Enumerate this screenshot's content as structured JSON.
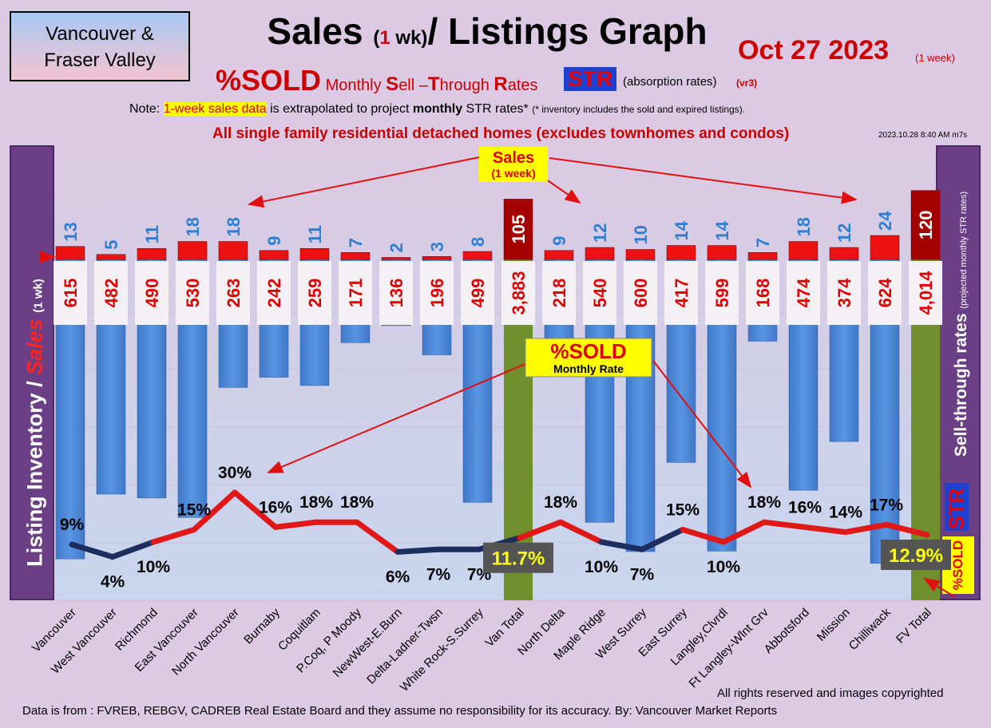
{
  "header": {
    "region_line1": "Vancouver &",
    "region_line2": "Fraser Valley",
    "title_a": "Sales ",
    "title_b": "(",
    "title_c": "1",
    "title_d": " wk)",
    "title_e": "/ Listings Graph",
    "date": "Oct 27  2023",
    "date_sub": "(1 week)",
    "sub_sold": "%SOLD",
    "sub_m1": " Monthly ",
    "sub_s": "S",
    "sub_m2": "ell –",
    "sub_t": "T",
    "sub_m3": "hrough ",
    "sub_r": "R",
    "sub_m4": "ates",
    "str_badge": "STR",
    "absorption": "(absorption rates)",
    "vr3": "(vr3)",
    "note_a": "Note: ",
    "note_hl": "1-week sales data",
    "note_b": " is extrapolated to project ",
    "note_bold": "monthly",
    "note_c": " STR rates* ",
    "note_small": "(* inventory includes the sold and expired listings).",
    "all_single": "All single family residential detached homes (excludes townhomes and condos)",
    "stamp": "2023.10.28 8:40 AM m7s"
  },
  "side": {
    "left_a": "Listing Inventory ",
    "left_slash": "/",
    "left_sales": " Sales ",
    "left_wk": "(1 wk)",
    "right_a": "Sell-through rates ",
    "right_sm": "(projected monthly STR rates)",
    "str": "STR",
    "sold": "%SOLD"
  },
  "callouts": {
    "sales_title": "Sales",
    "sales_sub": "(1 week)",
    "sold_title": "%SOLD",
    "sold_sub": "Monthly Rate"
  },
  "footer": {
    "rights": "All rights reserved and  images copyrighted",
    "source": "Data is from : FVREB, REBGV, CADREB Real Estate Board and they assume no responsibility for its accuracy. By: Vancouver Market Reports"
  },
  "colors": {
    "inventory_bar": "#4a86d6",
    "total_bar": "#6f8f2d",
    "sales_bar": "#ee1111",
    "sales_total_bar": "#a50000",
    "sales_label": "#2f7fd0",
    "inventory_label": "#e00000",
    "line_high": "#e01818",
    "line_low": "#1c2d5e"
  },
  "chart_data": {
    "type": "bar",
    "categories": [
      "Vancouver",
      "West Vancouver",
      "Richmond",
      "East Vancouver",
      "North Vancouver",
      "Burnaby",
      "Coquitlam",
      "P.Coq, P Moody",
      "NewWest-E.Burn",
      "Delta-Ladner-Twsn",
      "White Rock-S.Surrey",
      "Van Total",
      "North Delta",
      "Maple Ridge",
      "West Surrey",
      "East Surrey",
      "Langley,Clvrdl",
      "Ft Langley-Wlnt Grv",
      "Abbotsford",
      "Mission",
      "Chilliwack",
      "FV Total"
    ],
    "series": [
      {
        "values": [
          615,
          482,
          490,
          530,
          263,
          242,
          259,
          171,
          136,
          196,
          499,
          3883,
          218,
          540,
          600,
          417,
          599,
          168,
          474,
          374,
          624,
          4014
        ]
      },
      {
        "values": [
          13,
          5,
          11,
          18,
          18,
          9,
          11,
          7,
          2,
          3,
          8,
          105,
          9,
          12,
          10,
          14,
          14,
          7,
          18,
          12,
          24,
          120
        ]
      },
      {
        "values": [
          9,
          4,
          10,
          15,
          30,
          16,
          18,
          18,
          6,
          7,
          7,
          11.7,
          18,
          10,
          7,
          15,
          10,
          18,
          16,
          14,
          17,
          12.9
        ]
      }
    ],
    "inventory_labels": [
      "615",
      "482",
      "490",
      "530",
      "263",
      "242",
      "259",
      "171",
      "136",
      "196",
      "499",
      "3,883",
      "218",
      "540",
      "600",
      "417",
      "599",
      "168",
      "474",
      "374",
      "624",
      "4,014"
    ],
    "sales_labels": [
      "13",
      "5",
      "11",
      "18",
      "18",
      "9",
      "11",
      "7",
      "2",
      "3",
      "8",
      "105",
      "9",
      "12",
      "10",
      "14",
      "14",
      "7",
      "18",
      "12",
      "24",
      "120"
    ],
    "rate_labels": [
      "9%",
      "4%",
      "10%",
      "15%",
      "30%",
      "16%",
      "18%",
      "18%",
      "6%",
      "7%",
      "7%",
      "11.7%",
      "18%",
      "10%",
      "7%",
      "15%",
      "10%",
      "18%",
      "16%",
      "14%",
      "17%",
      "12.9%"
    ],
    "total_indices": [
      11,
      21
    ],
    "xlabel": "",
    "ylabel": ""
  }
}
